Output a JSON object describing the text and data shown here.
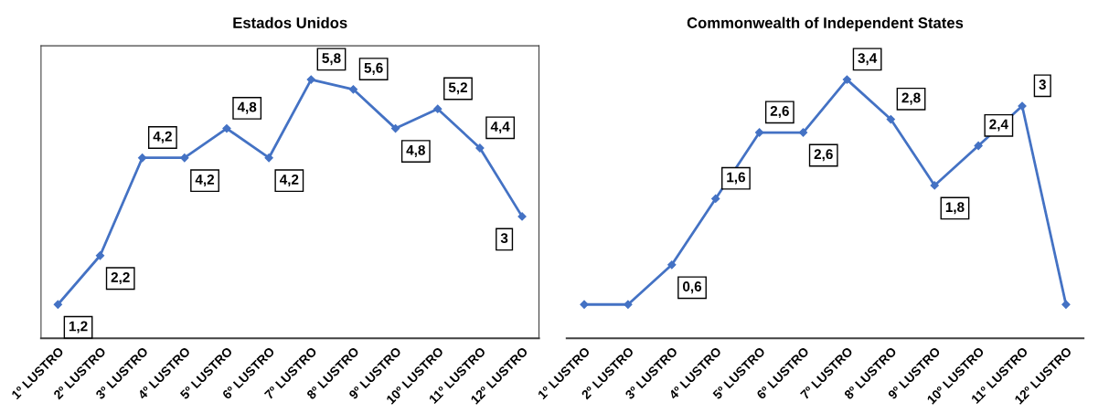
{
  "chart_data": [
    {
      "type": "line",
      "title": "Estados Unidos",
      "categories": [
        "1º LUSTRO",
        "2º LUSTRO",
        "3º LUSTRO",
        "4º LUSTRO",
        "5º LUSTRO",
        "6º LUSTRO",
        "7º LUSTRO",
        "8º LUSTRO",
        "9º LUSTRO",
        "10º LUSTRO",
        "11º LUSTRO",
        "12º LUSTRO"
      ],
      "series": [
        {
          "color": "#4472c4",
          "values": [
            1.2,
            2.2,
            4.2,
            4.2,
            4.8,
            4.2,
            5.8,
            5.6,
            4.8,
            5.2,
            4.4,
            3
          ],
          "value_labels": [
            "1,2",
            "2,2",
            "4,2",
            "4,2",
            "4,8",
            "4,2",
            "5,8",
            "5,6",
            "4,8",
            "5,2",
            "4,4",
            "3"
          ]
        }
      ],
      "tick_labels": "x",
      "marker": "diamond",
      "line_style": "solid"
    },
    {
      "type": "line",
      "title": "Commonwealth of Independent States",
      "categories": [
        "1º LUSTRO",
        "2º LUSTRO",
        "3º LUSTRO",
        "4º LUSTRO",
        "5º LUSTRO",
        "6º LUSTRO",
        "7º LUSTRO",
        "8º LUSTRO",
        "9º LUSTRO",
        "10º LUSTRO",
        "11º LUSTRO",
        "12º LUSTRO"
      ],
      "series": [
        {
          "color": "#4472c4",
          "values": [
            0,
            0,
            0.6,
            1.6,
            2.6,
            2.6,
            3.4,
            2.8,
            1.8,
            2.4,
            3,
            0
          ],
          "value_labels": [
            null,
            null,
            "0,6",
            "1,6",
            "2,6",
            "2,6",
            "3,4",
            "2,8",
            "1,8",
            "2,4",
            "3",
            null
          ]
        }
      ],
      "tick_labels": "x",
      "marker": "diamond",
      "line_style": "solid"
    }
  ]
}
